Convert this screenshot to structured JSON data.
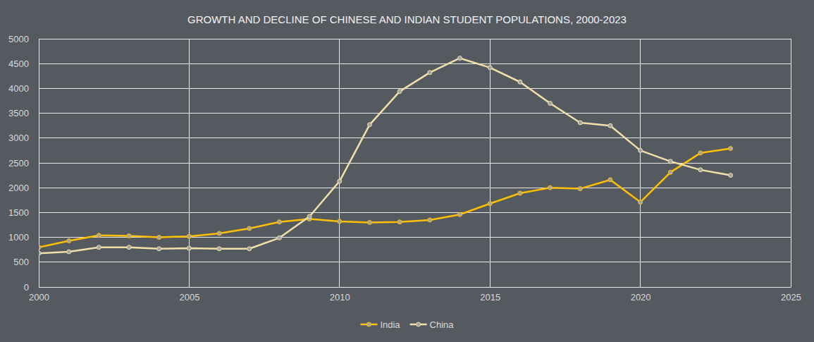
{
  "chart_data": {
    "type": "line",
    "title": "GROWTH AND DECLINE OF CHINESE AND INDIAN STUDENT POPULATIONS, 2000-2023",
    "x": [
      2000,
      2001,
      2002,
      2003,
      2004,
      2005,
      2006,
      2007,
      2008,
      2009,
      2010,
      2011,
      2012,
      2013,
      2014,
      2015,
      2016,
      2017,
      2018,
      2019,
      2020,
      2021,
      2022,
      2023
    ],
    "series": [
      {
        "name": "India",
        "color": "#ffc000",
        "marker": "circle",
        "values": [
          800,
          930,
          1040,
          1030,
          1000,
          1020,
          1080,
          1180,
          1310,
          1370,
          1320,
          1300,
          1310,
          1350,
          1460,
          1680,
          1890,
          2000,
          1980,
          2160,
          1710,
          2310,
          2700,
          2790
        ]
      },
      {
        "name": "China",
        "color": "#f1e0a8",
        "marker": "circle",
        "values": [
          680,
          710,
          800,
          800,
          770,
          780,
          770,
          770,
          990,
          1420,
          2130,
          3270,
          3940,
          4320,
          4610,
          4420,
          4130,
          3700,
          3310,
          3250,
          2750,
          2530,
          2360,
          2250
        ]
      }
    ],
    "xlim": [
      2000,
      2025
    ],
    "xticks": [
      2000,
      2005,
      2010,
      2015,
      2020,
      2025
    ],
    "ylim": [
      0,
      5000
    ],
    "yticks": [
      0,
      500,
      1000,
      1500,
      2000,
      2500,
      3000,
      3500,
      4000,
      4500,
      5000
    ],
    "grid": true,
    "legend": "bottom"
  }
}
